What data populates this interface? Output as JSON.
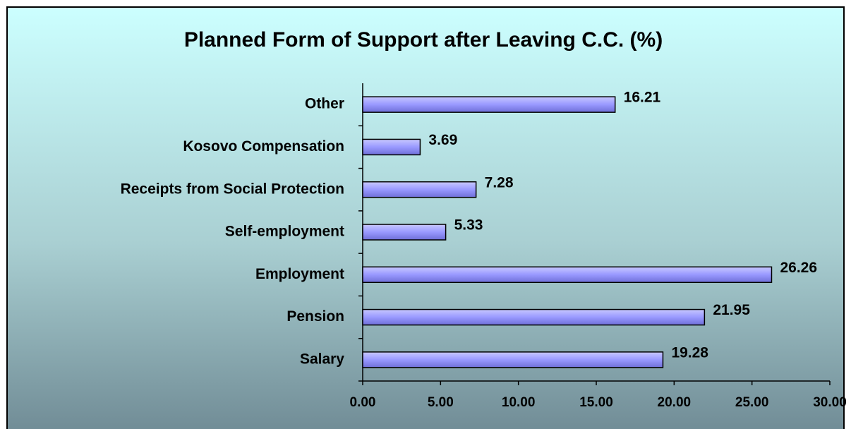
{
  "chart_data": {
    "type": "bar",
    "orientation": "horizontal",
    "title": "Planned Form of Support after Leaving C.C. (%)",
    "categories": [
      "Salary",
      "Pension",
      "Employment",
      "Self-employment",
      "Receipts from Social Protection",
      "Kosovo Compensation",
      "Other"
    ],
    "values": [
      19.28,
      21.95,
      26.26,
      5.33,
      7.28,
      3.69,
      16.21
    ],
    "color": "#9999ff",
    "xlim": [
      0,
      30
    ],
    "xticks": [
      {
        "value": 0,
        "label": "0.00"
      },
      {
        "value": 5,
        "label": "5.00"
      },
      {
        "value": 10,
        "label": "10.00"
      },
      {
        "value": 15,
        "label": "15.00"
      },
      {
        "value": 20,
        "label": "20.00"
      },
      {
        "value": 25,
        "label": "25.00"
      },
      {
        "value": 30,
        "label": "30.00"
      }
    ],
    "grid": false
  }
}
